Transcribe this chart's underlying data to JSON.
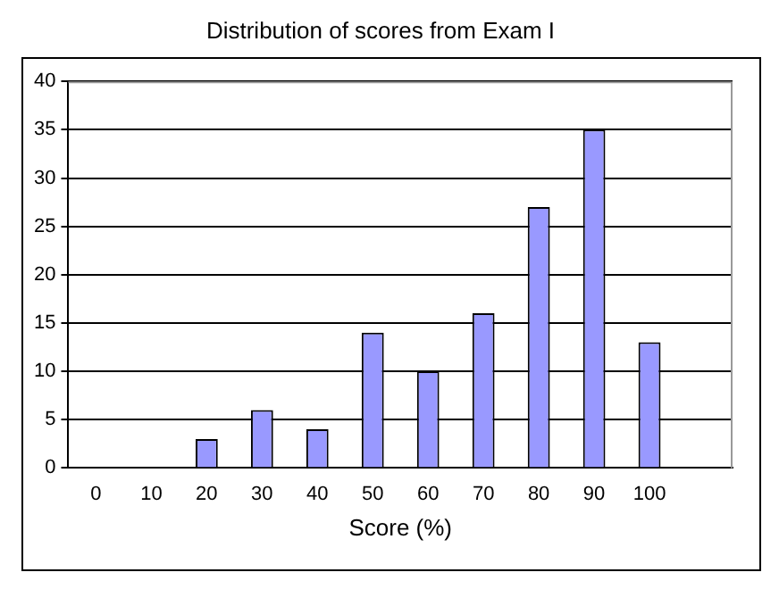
{
  "chart_data": {
    "type": "bar",
    "title": "Distribution of scores from Exam I",
    "xlabel": "Score (%)",
    "categories": [
      "0",
      "10",
      "20",
      "30",
      "40",
      "50",
      "60",
      "70",
      "80",
      "90",
      "100",
      null
    ],
    "values": [
      0,
      0,
      3,
      6,
      4,
      14,
      10,
      16,
      27,
      35,
      13,
      null
    ],
    "color": "#9999ff",
    "ylim": [
      0,
      40
    ],
    "yticks": [
      0,
      5,
      10,
      15,
      20,
      25,
      30,
      35,
      40
    ],
    "grid": "y",
    "legend": false
  }
}
